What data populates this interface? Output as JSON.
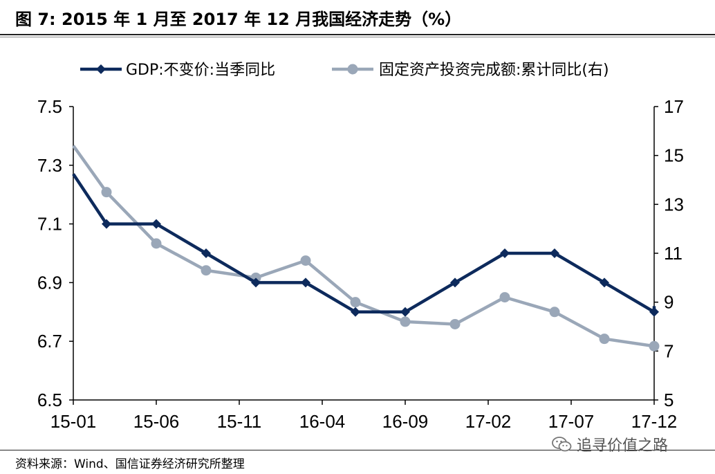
{
  "header": {
    "title": "图 7: 2015 年 1 月至 2017 年 12 月我国经济走势（%）"
  },
  "footer": {
    "source": "资料来源：Wind、国信证券经济研究所整理",
    "watermark": "追寻价值之路",
    "watermark_icon": "wechat-icon"
  },
  "chart_data": {
    "type": "line",
    "x_tick_labels": [
      "15-01",
      "15-06",
      "15-11",
      "16-04",
      "16-09",
      "17-02",
      "17-07",
      "17-12"
    ],
    "y_left": {
      "lim": [
        6.5,
        7.5
      ],
      "ticks": [
        "7.5",
        "7.3",
        "7.1",
        "6.9",
        "6.7",
        "6.5"
      ]
    },
    "y_right": {
      "lim": [
        5,
        17
      ],
      "ticks": [
        "17",
        "15",
        "13",
        "11",
        "9",
        "7",
        "5"
      ]
    },
    "x": [
      "2015-03",
      "2015-06",
      "2015-09",
      "2015-12",
      "2016-03",
      "2016-06",
      "2016-09",
      "2016-12",
      "2017-03",
      "2017-06",
      "2017-09",
      "2017-12"
    ],
    "series": [
      {
        "name": "GDP:不变价:当季同比",
        "axis": "left",
        "color": "#0d2a5c",
        "marker": "diamond",
        "start": 7.27,
        "values": [
          7.1,
          7.1,
          7.0,
          6.9,
          6.9,
          6.8,
          6.8,
          6.9,
          7.0,
          7.0,
          6.9,
          6.8
        ],
        "end": 6.82
      },
      {
        "name": "固定资产投资完成额:累计同比(右)",
        "axis": "right",
        "color": "#9aa7b8",
        "marker": "circle",
        "start": 15.4,
        "values": [
          13.5,
          11.4,
          10.3,
          10.0,
          10.7,
          9.0,
          8.2,
          8.1,
          9.2,
          8.6,
          7.5,
          7.2
        ]
      }
    ],
    "legend": "top",
    "grid": false
  }
}
